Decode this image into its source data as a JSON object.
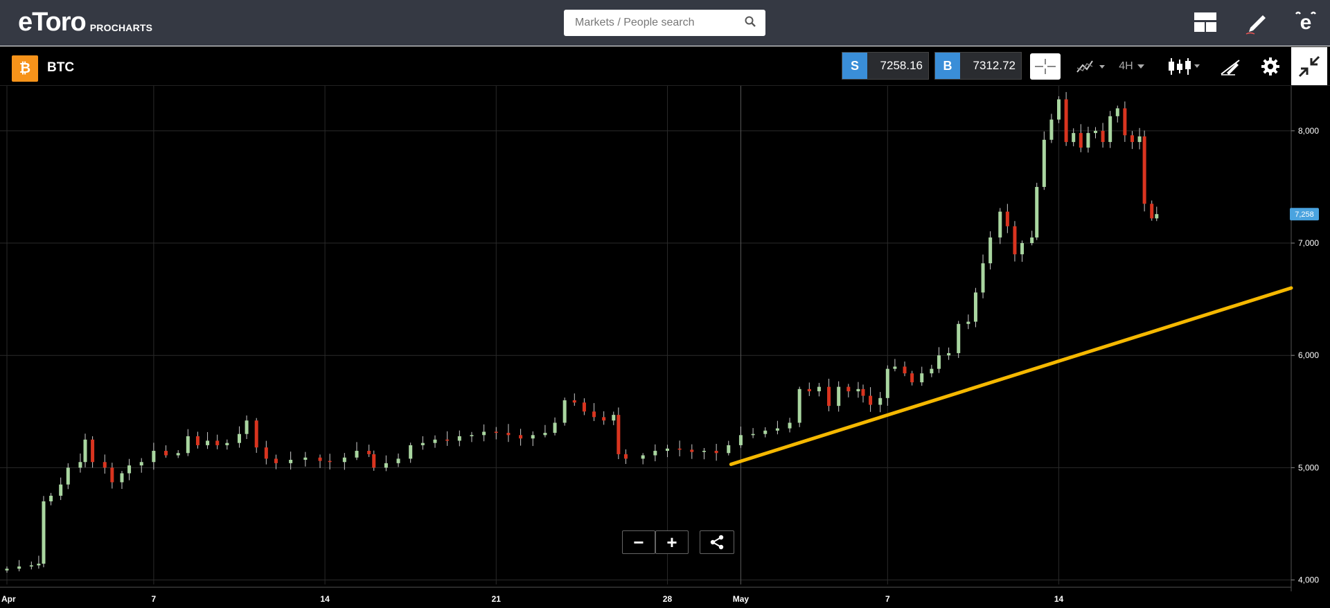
{
  "header": {
    "brand": "eToro",
    "product": "PROCHARTS",
    "search_placeholder": "Markets / People search"
  },
  "icons": {
    "search": "search-icon",
    "layout": "layout-icon",
    "draw": "pencil-icon",
    "profile": "etoro-e-icon",
    "coin": "bitcoin-icon",
    "crosshair": "crosshair-icon",
    "indicators": "indicators-icon",
    "chart_type": "candlestick-icon",
    "drawing_tools": "drawing-tools-icon",
    "settings": "gear-icon",
    "exit_fullscreen": "exit-fullscreen-icon",
    "share": "share-icon"
  },
  "instrument": {
    "symbol": "BTC",
    "coin_glyph": "₿",
    "sell_label": "S",
    "sell_price": "7258.16",
    "buy_label": "B",
    "buy_price": "7312.72",
    "timeframe": "4H"
  },
  "colors": {
    "up_candle": "#a9d6a0",
    "down_candle": "#d9341f",
    "trendline": "#f5b800",
    "price_tag": "#4aa3df",
    "accent_blue": "#3a8ed8"
  },
  "zoom": {
    "minus": "−",
    "plus": "+"
  },
  "chart_data": {
    "type": "candlestick",
    "current_price_label": "7,258",
    "y_ticks": [
      {
        "value": 4000,
        "label": "4,000"
      },
      {
        "value": 5000,
        "label": "5,000"
      },
      {
        "value": 6000,
        "label": "6,000"
      },
      {
        "value": 7000,
        "label": "7,000"
      },
      {
        "value": 8000,
        "label": "8,000"
      }
    ],
    "ylim": [
      3960,
      8400
    ],
    "xlim_days": [
      0,
      52.5
    ],
    "x_ticks": [
      {
        "day": 0,
        "label": "Apr"
      },
      {
        "day": 6,
        "label": "7"
      },
      {
        "day": 13,
        "label": "14"
      },
      {
        "day": 20,
        "label": "21"
      },
      {
        "day": 27,
        "label": "28"
      },
      {
        "day": 30,
        "label": "May"
      },
      {
        "day": 36,
        "label": "7"
      },
      {
        "day": 43,
        "label": "14"
      }
    ],
    "series_close": [
      [
        0,
        4100
      ],
      [
        0.5,
        4120
      ],
      [
        1,
        4130
      ],
      [
        1.3,
        4145
      ],
      [
        1.5,
        4700
      ],
      [
        1.8,
        4750
      ],
      [
        2.2,
        4850
      ],
      [
        2.5,
        5000
      ],
      [
        3,
        5050
      ],
      [
        3.2,
        5250
      ],
      [
        3.5,
        5050
      ],
      [
        4,
        5000
      ],
      [
        4.3,
        4870
      ],
      [
        4.7,
        4950
      ],
      [
        5,
        5020
      ],
      [
        5.5,
        5050
      ],
      [
        6,
        5150
      ],
      [
        6.5,
        5110
      ],
      [
        7,
        5130
      ],
      [
        7.4,
        5280
      ],
      [
        7.8,
        5200
      ],
      [
        8.2,
        5240
      ],
      [
        8.6,
        5200
      ],
      [
        9,
        5220
      ],
      [
        9.5,
        5300
      ],
      [
        9.8,
        5420
      ],
      [
        10.2,
        5180
      ],
      [
        10.6,
        5080
      ],
      [
        11,
        5040
      ],
      [
        11.6,
        5070
      ],
      [
        12.2,
        5090
      ],
      [
        12.8,
        5060
      ],
      [
        13.2,
        5050
      ],
      [
        13.8,
        5090
      ],
      [
        14.3,
        5150
      ],
      [
        14.8,
        5120
      ],
      [
        15,
        5000
      ],
      [
        15.5,
        5040
      ],
      [
        16,
        5080
      ],
      [
        16.5,
        5200
      ],
      [
        17,
        5220
      ],
      [
        17.5,
        5250
      ],
      [
        18,
        5240
      ],
      [
        18.5,
        5280
      ],
      [
        19,
        5290
      ],
      [
        19.5,
        5320
      ],
      [
        20,
        5310
      ],
      [
        20.5,
        5290
      ],
      [
        21,
        5260
      ],
      [
        21.5,
        5290
      ],
      [
        22,
        5310
      ],
      [
        22.4,
        5400
      ],
      [
        22.8,
        5600
      ],
      [
        23.2,
        5580
      ],
      [
        23.6,
        5500
      ],
      [
        24,
        5450
      ],
      [
        24.4,
        5420
      ],
      [
        24.8,
        5470
      ],
      [
        25,
        5120
      ],
      [
        25.3,
        5080
      ],
      [
        26,
        5110
      ],
      [
        26.5,
        5150
      ],
      [
        27,
        5170
      ],
      [
        27.5,
        5160
      ],
      [
        28,
        5140
      ],
      [
        28.5,
        5150
      ],
      [
        29,
        5130
      ],
      [
        29.5,
        5200
      ],
      [
        30,
        5290
      ],
      [
        30.5,
        5300
      ],
      [
        31,
        5330
      ],
      [
        31.5,
        5350
      ],
      [
        32,
        5400
      ],
      [
        32.4,
        5700
      ],
      [
        32.8,
        5680
      ],
      [
        33.2,
        5720
      ],
      [
        33.6,
        5550
      ],
      [
        34,
        5720
      ],
      [
        34.4,
        5680
      ],
      [
        34.8,
        5700
      ],
      [
        35,
        5640
      ],
      [
        35.3,
        5560
      ],
      [
        35.7,
        5620
      ],
      [
        36,
        5880
      ],
      [
        36.3,
        5900
      ],
      [
        36.7,
        5840
      ],
      [
        37,
        5760
      ],
      [
        37.4,
        5840
      ],
      [
        37.8,
        5880
      ],
      [
        38.1,
        6000
      ],
      [
        38.5,
        6020
      ],
      [
        38.9,
        6280
      ],
      [
        39.3,
        6300
      ],
      [
        39.6,
        6560
      ],
      [
        39.9,
        6820
      ],
      [
        40.2,
        7050
      ],
      [
        40.6,
        7280
      ],
      [
        40.9,
        7150
      ],
      [
        41.2,
        6900
      ],
      [
        41.5,
        7000
      ],
      [
        41.9,
        7050
      ],
      [
        42.1,
        7500
      ],
      [
        42.4,
        7920
      ],
      [
        42.7,
        8100
      ],
      [
        43,
        8280
      ],
      [
        43.3,
        7900
      ],
      [
        43.6,
        7980
      ],
      [
        43.9,
        7850
      ],
      [
        44.2,
        7980
      ],
      [
        44.5,
        8000
      ],
      [
        44.8,
        7900
      ],
      [
        45.1,
        8130
      ],
      [
        45.4,
        8200
      ],
      [
        45.7,
        7960
      ],
      [
        46,
        7900
      ],
      [
        46.3,
        7950
      ],
      [
        46.5,
        7350
      ],
      [
        46.8,
        7220
      ],
      [
        47,
        7258
      ]
    ],
    "trendline": {
      "from": [
        29.6,
        5030
      ],
      "to": [
        52.5,
        6600
      ]
    },
    "crosshair_day": 30
  }
}
